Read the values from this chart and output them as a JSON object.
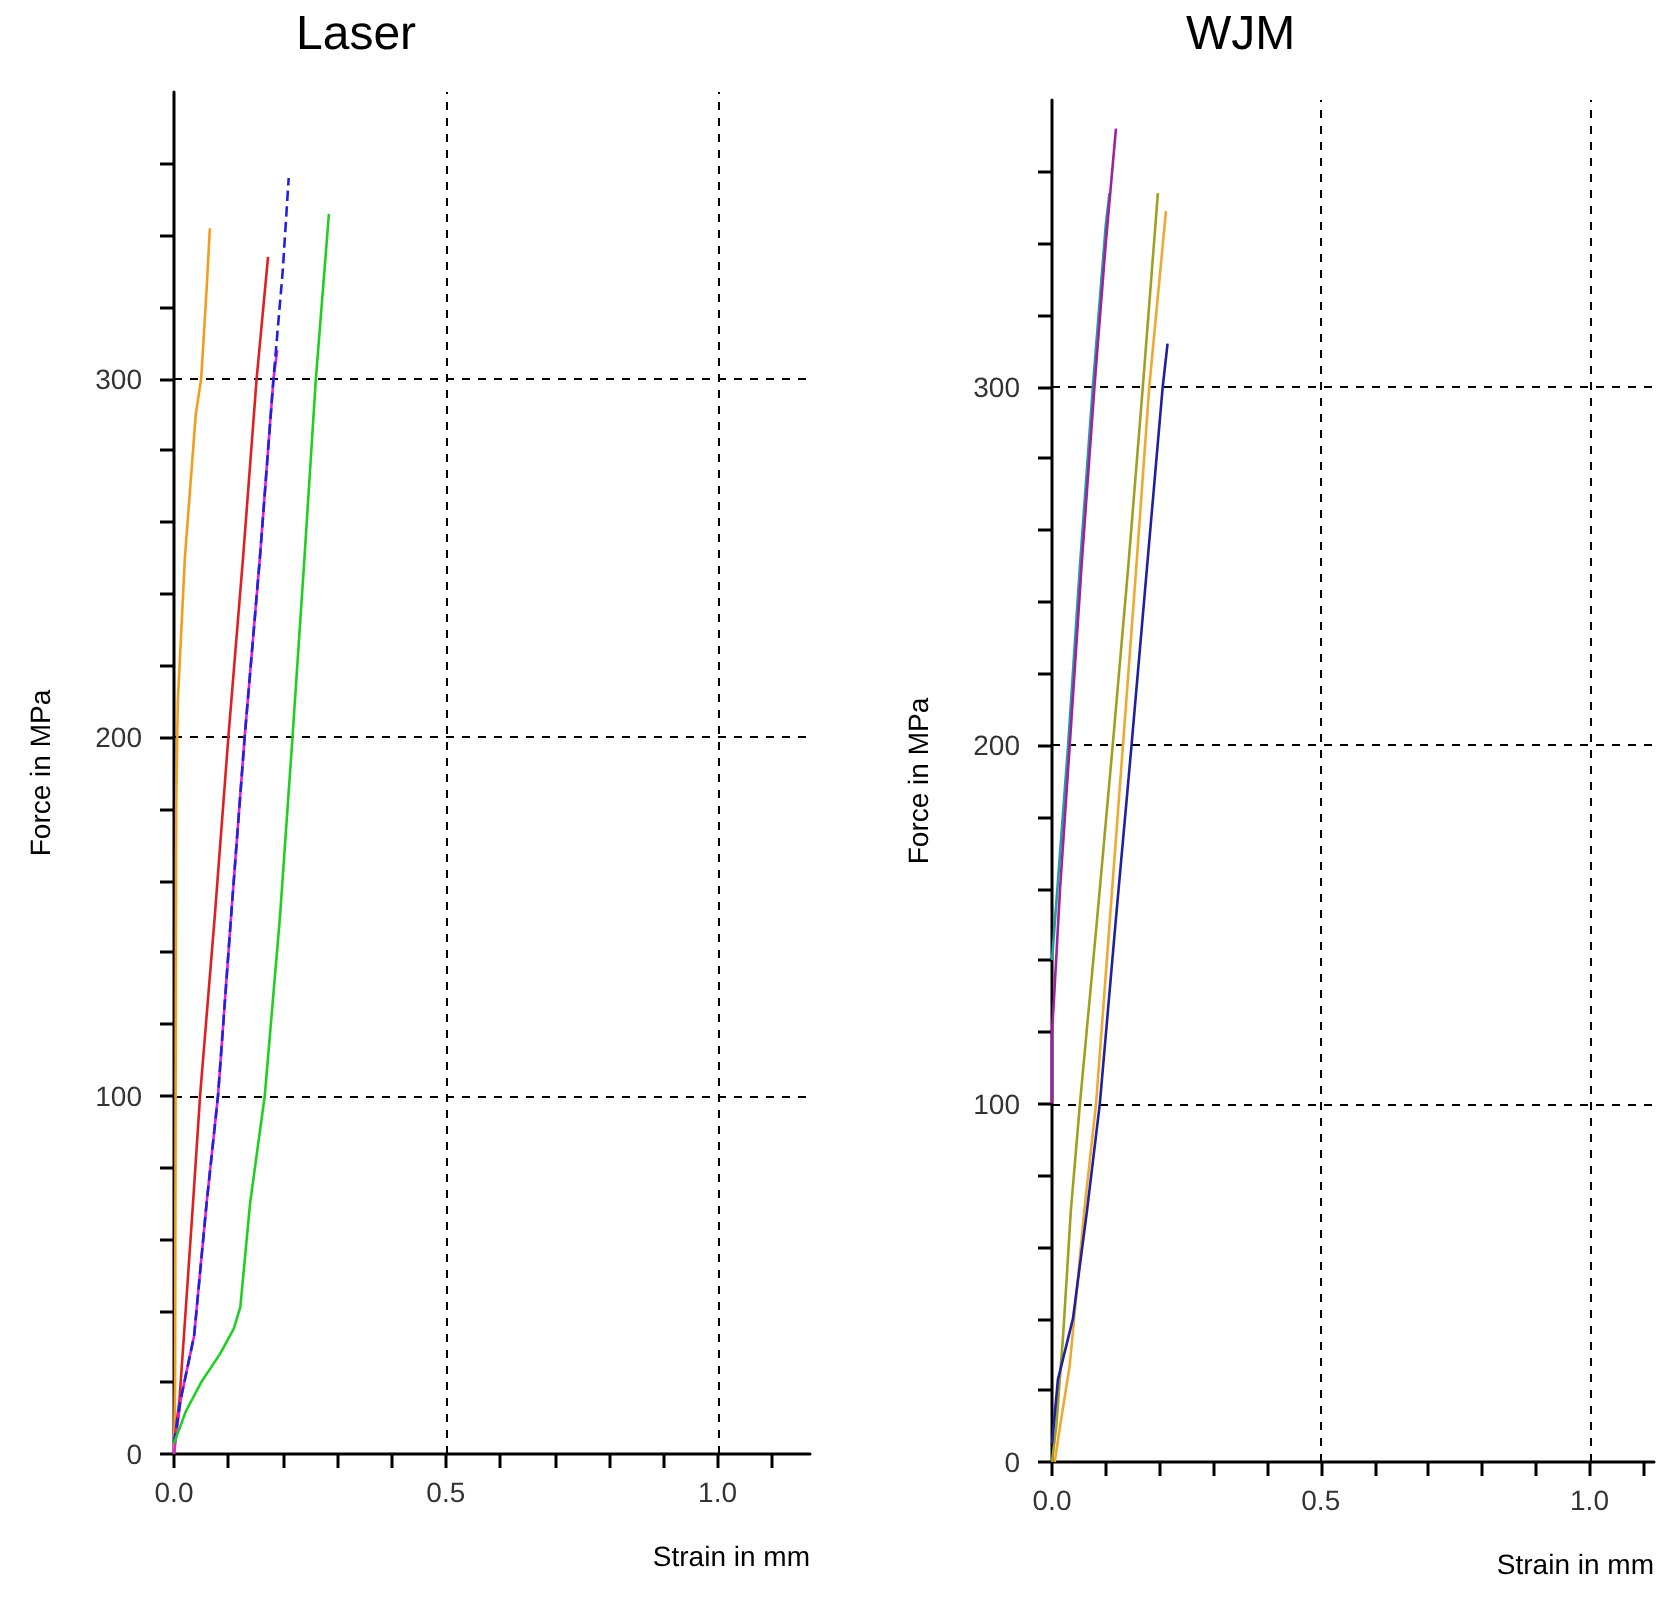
{
  "chart_data": [
    {
      "type": "line",
      "title": "Laser",
      "xlabel": "Strain in mm",
      "ylabel": "Force in MPa",
      "xlim": [
        0,
        1.17
      ],
      "ylim": [
        0,
        380
      ],
      "grid": true,
      "line_style": "solid",
      "marker": "none",
      "xticks": [
        {
          "value": 0,
          "label": "0.0"
        },
        {
          "value": 0.1,
          "label": null
        },
        {
          "value": 0.2,
          "label": null
        },
        {
          "value": 0.3,
          "label": null
        },
        {
          "value": 0.4,
          "label": null
        },
        {
          "value": 0.5,
          "label": "0.5"
        },
        {
          "value": 0.6,
          "label": null
        },
        {
          "value": 0.7,
          "label": null
        },
        {
          "value": 0.8,
          "label": null
        },
        {
          "value": 0.9,
          "label": null
        },
        {
          "value": 1.0,
          "label": "1.0"
        },
        {
          "value": 1.1,
          "label": null
        }
      ],
      "yticks": [
        0,
        {
          "value": 20,
          "label": null
        },
        {
          "value": 40,
          "label": null
        },
        {
          "value": 60,
          "label": null
        },
        {
          "value": 80,
          "label": null
        },
        100,
        {
          "value": 120,
          "label": null
        },
        {
          "value": 140,
          "label": null
        },
        {
          "value": 160,
          "label": null
        },
        {
          "value": 180,
          "label": null
        },
        200,
        {
          "value": 220,
          "label": null
        },
        {
          "value": 240,
          "label": null
        },
        {
          "value": 260,
          "label": null
        },
        {
          "value": 280,
          "label": null
        },
        300,
        {
          "value": 320,
          "label": null
        },
        {
          "value": 340,
          "label": null
        },
        {
          "value": 360,
          "label": null
        }
      ],
      "series": [
        {
          "color": "#f39c1e",
          "x": [
            0,
            0.002,
            0.003,
            0.004,
            0.007,
            0.02,
            0.04,
            0.05,
            0.06,
            0.066
          ],
          "values": [
            0,
            20,
            100,
            180,
            210,
            250,
            290,
            300,
            325,
            342
          ]
        },
        {
          "color": "#e02020",
          "x": [
            0,
            0.01,
            0.021,
            0.035,
            0.048,
            0.075,
            0.1,
            0.127,
            0.152,
            0.173
          ],
          "values": [
            3,
            15,
            39,
            70,
            100,
            150,
            200,
            250,
            300,
            334
          ]
        },
        {
          "color": "#e020e0",
          "x": [
            0,
            0.012,
            0.037,
            0.06,
            0.081,
            0.105,
            0.13,
            0.158,
            0.183,
            0.19
          ],
          "values": [
            0,
            15,
            33,
            70,
            100,
            150,
            200,
            250,
            300,
            308
          ]
        },
        {
          "color": "#2020e0",
          "line_style": "dashed",
          "x": [
            0,
            0.012,
            0.037,
            0.06,
            0.081,
            0.105,
            0.13,
            0.158,
            0.183,
            0.2,
            0.211
          ],
          "values": [
            3,
            15,
            33,
            70,
            100,
            150,
            200,
            250,
            300,
            330,
            356
          ]
        },
        {
          "color": "#20d020",
          "x": [
            0,
            0.022,
            0.05,
            0.085,
            0.11,
            0.122,
            0.14,
            0.167,
            0.195,
            0.218,
            0.24,
            0.261,
            0.285
          ],
          "values": [
            3,
            12,
            20,
            28,
            35,
            41,
            70,
            100,
            150,
            200,
            250,
            300,
            346
          ]
        }
      ]
    },
    {
      "type": "line",
      "title": "WJM",
      "xlabel": "Strain in mm",
      "ylabel": "Force in MPa",
      "xlim": [
        0,
        1.12
      ],
      "ylim": [
        0,
        380
      ],
      "grid": true,
      "line_style": "solid",
      "marker": "none",
      "xticks": [
        {
          "value": 0,
          "label": "0.0"
        },
        {
          "value": 0.1,
          "label": null
        },
        {
          "value": 0.2,
          "label": null
        },
        {
          "value": 0.3,
          "label": null
        },
        {
          "value": 0.4,
          "label": null
        },
        {
          "value": 0.5,
          "label": "0.5"
        },
        {
          "value": 0.6,
          "label": null
        },
        {
          "value": 0.7,
          "label": null
        },
        {
          "value": 0.8,
          "label": null
        },
        {
          "value": 0.9,
          "label": null
        },
        {
          "value": 1.0,
          "label": "1.0"
        },
        {
          "value": 1.1,
          "label": null
        }
      ],
      "yticks": [
        0,
        {
          "value": 20,
          "label": null
        },
        {
          "value": 40,
          "label": null
        },
        {
          "value": 60,
          "label": null
        },
        {
          "value": 80,
          "label": null
        },
        100,
        {
          "value": 120,
          "label": null
        },
        {
          "value": 140,
          "label": null
        },
        {
          "value": 160,
          "label": null
        },
        {
          "value": 180,
          "label": null
        },
        200,
        {
          "value": 220,
          "label": null
        },
        {
          "value": 240,
          "label": null
        },
        {
          "value": 260,
          "label": null
        },
        {
          "value": 280,
          "label": null
        },
        300,
        {
          "value": 320,
          "label": null
        },
        {
          "value": 340,
          "label": null
        },
        {
          "value": 360,
          "label": null
        }
      ],
      "series": [
        {
          "color": "#20a0a0",
          "x": [
            0,
            0.01,
            0.03,
            0.052,
            0.076,
            0.1,
            0.107
          ],
          "values": [
            140,
            160,
            200,
            250,
            300,
            345,
            354
          ]
        },
        {
          "color": "#a020a0",
          "x": [
            0,
            0,
            0.004,
            0.015,
            0.033,
            0.055,
            0.079,
            0.1,
            0.119
          ],
          "values": [
            100,
            120,
            130,
            160,
            200,
            250,
            300,
            340,
            372
          ]
        },
        {
          "color": "#a0a020",
          "x": [
            0,
            0.008,
            0.021,
            0.035,
            0.052,
            0.083,
            0.113,
            0.142,
            0.169,
            0.197
          ],
          "values": [
            0,
            10,
            36,
            70,
            100,
            150,
            200,
            250,
            300,
            354
          ]
        },
        {
          "color": "#f0a830",
          "x": [
            0.005,
            0.015,
            0.033,
            0.06,
            0.082,
            0.107,
            0.132,
            0.157,
            0.181,
            0.212
          ],
          "values": [
            0,
            10,
            27,
            70,
            100,
            150,
            200,
            250,
            300,
            349
          ]
        },
        {
          "color": "#2020a0",
          "x": [
            0,
            0.011,
            0.039,
            0.065,
            0.089,
            0.118,
            0.148,
            0.177,
            0.206,
            0.215
          ],
          "values": [
            5,
            23,
            40,
            70,
            100,
            150,
            200,
            250,
            300,
            312
          ]
        }
      ]
    }
  ]
}
